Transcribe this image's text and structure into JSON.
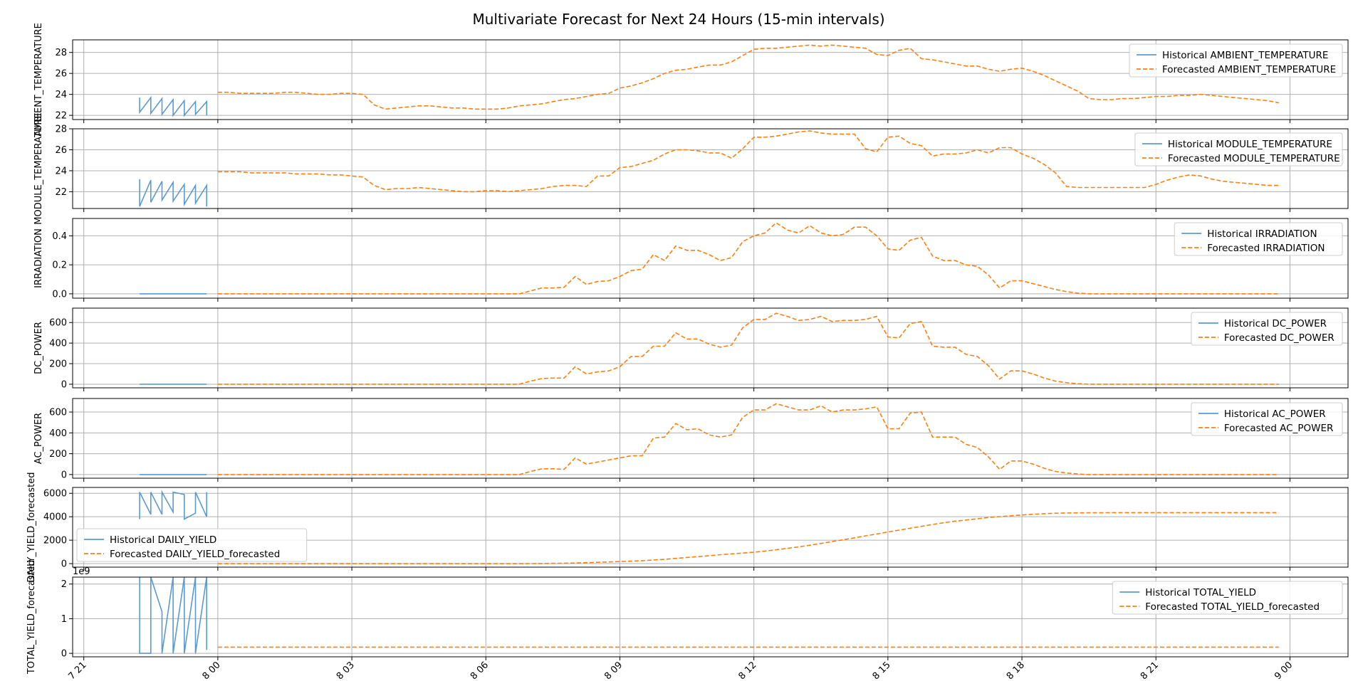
{
  "title": "Multivariate Forecast for Next 24 Hours (15-min intervals)",
  "colors": {
    "historical": "#5b9bcf",
    "forecast": "#ff7f0e",
    "grid": "#b0b0b0"
  },
  "x_ticks": [
    {
      "h": 21,
      "label": "7 21"
    },
    {
      "h": 24,
      "label": "8 00"
    },
    {
      "h": 27,
      "label": "8 03"
    },
    {
      "h": 30,
      "label": "8 06"
    },
    {
      "h": 33,
      "label": "8 09"
    },
    {
      "h": 36,
      "label": "8 12"
    },
    {
      "h": 39,
      "label": "8 15"
    },
    {
      "h": 42,
      "label": "8 18"
    },
    {
      "h": 45,
      "label": "8 21"
    },
    {
      "h": 48,
      "label": "9 00"
    }
  ],
  "chart_data": [
    {
      "type": "line",
      "ylabel": "AMBIENT_TEMPERATURE",
      "ylim": [
        21.6,
        29.2
      ],
      "yticks": [
        22,
        24,
        26,
        28
      ],
      "legend": "top-right",
      "historical_name": "Historical AMBIENT_TEMPERATURE",
      "forecast_name": "Forecasted AMBIENT_TEMPERATURE",
      "hist_x": [
        22.25,
        22.25,
        22.5,
        22.5,
        22.75,
        22.75,
        23.0,
        23.0,
        23.25,
        23.25,
        23.5,
        23.5,
        23.75,
        23.75
      ],
      "hist_y": [
        23.7,
        22.3,
        23.7,
        22.2,
        23.6,
        22.1,
        23.5,
        22.0,
        23.4,
        22.0,
        23.3,
        22.1,
        23.3,
        22.0
      ],
      "fc_y": [
        24.2,
        24.2,
        24.1,
        24.1,
        24.1,
        24.1,
        24.2,
        24.2,
        24.1,
        24.0,
        24.0,
        24.1,
        24.1,
        24.0,
        23.0,
        22.6,
        22.7,
        22.8,
        22.9,
        22.9,
        22.8,
        22.7,
        22.7,
        22.6,
        22.6,
        22.6,
        22.7,
        22.9,
        23.0,
        23.1,
        23.3,
        23.5,
        23.6,
        23.8,
        24.0,
        24.1,
        24.6,
        24.8,
        25.1,
        25.5,
        26.0,
        26.3,
        26.4,
        26.6,
        26.8,
        26.8,
        27.1,
        27.7,
        28.3,
        28.4,
        28.4,
        28.5,
        28.6,
        28.7,
        28.6,
        28.7,
        28.6,
        28.5,
        28.4,
        27.8,
        27.7,
        28.2,
        28.4,
        27.4,
        27.3,
        27.1,
        26.9,
        26.7,
        26.7,
        26.4,
        26.2,
        26.4,
        26.5,
        26.2,
        25.8,
        25.3,
        24.8,
        24.3,
        23.6,
        23.5,
        23.5,
        23.6,
        23.6,
        23.7,
        23.8,
        23.8,
        23.9,
        23.9,
        24.0,
        23.9,
        23.8,
        23.7,
        23.6,
        23.5,
        23.4,
        23.2
      ]
    },
    {
      "type": "line",
      "ylabel": "MODULE_TEMPERATURE",
      "ylim": [
        20.4,
        28.0
      ],
      "yticks": [
        22,
        24,
        26,
        28
      ],
      "legend": "top-right",
      "historical_name": "Historical MODULE_TEMPERATURE",
      "forecast_name": "Forecasted MODULE_TEMPERATURE",
      "hist_x": [
        22.25,
        22.25,
        22.5,
        22.5,
        22.75,
        22.75,
        23.0,
        23.0,
        23.25,
        23.25,
        23.5,
        23.5,
        23.75,
        23.75
      ],
      "hist_y": [
        23.2,
        20.6,
        23.1,
        21.0,
        23.0,
        21.2,
        22.9,
        21.1,
        22.7,
        20.8,
        22.6,
        20.9,
        22.6,
        20.6
      ],
      "fc_y": [
        23.9,
        23.9,
        23.9,
        23.8,
        23.8,
        23.8,
        23.8,
        23.7,
        23.7,
        23.7,
        23.6,
        23.6,
        23.5,
        23.4,
        22.6,
        22.2,
        22.3,
        22.3,
        22.4,
        22.3,
        22.2,
        22.1,
        22.0,
        22.0,
        22.1,
        22.1,
        22.0,
        22.1,
        22.2,
        22.3,
        22.5,
        22.6,
        22.6,
        22.5,
        23.5,
        23.5,
        24.3,
        24.4,
        24.7,
        25.0,
        25.6,
        26.0,
        26.0,
        25.9,
        25.7,
        25.7,
        25.2,
        26.1,
        27.2,
        27.2,
        27.3,
        27.5,
        27.7,
        27.8,
        27.6,
        27.5,
        27.5,
        27.5,
        26.1,
        25.8,
        27.2,
        27.3,
        26.6,
        26.4,
        25.4,
        25.6,
        25.6,
        25.7,
        26.0,
        25.7,
        26.2,
        26.2,
        25.6,
        25.2,
        24.6,
        23.8,
        22.5,
        22.4,
        22.4,
        22.4,
        22.4,
        22.4,
        22.4,
        22.4,
        22.7,
        23.1,
        23.4,
        23.6,
        23.5,
        23.2,
        23.0,
        22.9,
        22.8,
        22.7,
        22.6,
        22.6
      ]
    },
    {
      "type": "line",
      "ylabel": "IRRADIATION",
      "ylim": [
        -0.03,
        0.52
      ],
      "yticks": [
        0.0,
        0.2,
        0.4
      ],
      "legend": "top-right",
      "historical_name": "Historical IRRADIATION",
      "forecast_name": "Forecasted IRRADIATION",
      "hist_x": [
        22.25,
        23.75
      ],
      "hist_y": [
        0.0,
        0.0
      ],
      "fc_y": [
        0,
        0,
        0,
        0,
        0,
        0,
        0,
        0,
        0,
        0,
        0,
        0,
        0,
        0,
        0,
        0,
        0,
        0,
        0,
        0,
        0,
        0,
        0,
        0,
        0,
        0,
        0,
        0,
        0.02,
        0.04,
        0.04,
        0.045,
        0.12,
        0.065,
        0.085,
        0.09,
        0.12,
        0.16,
        0.17,
        0.27,
        0.23,
        0.33,
        0.3,
        0.3,
        0.27,
        0.23,
        0.25,
        0.36,
        0.4,
        0.42,
        0.49,
        0.44,
        0.42,
        0.47,
        0.42,
        0.4,
        0.41,
        0.46,
        0.46,
        0.4,
        0.31,
        0.3,
        0.37,
        0.39,
        0.26,
        0.23,
        0.23,
        0.2,
        0.19,
        0.13,
        0.04,
        0.09,
        0.09,
        0.07,
        0.05,
        0.03,
        0.015,
        0.005,
        0,
        0,
        0,
        0,
        0,
        0,
        0,
        0,
        0,
        0,
        0,
        0,
        0,
        0,
        0,
        0,
        0,
        0
      ]
    },
    {
      "type": "line",
      "ylabel": "DC_POWER",
      "ylim": [
        -35,
        740
      ],
      "yticks": [
        0,
        200,
        400,
        600
      ],
      "legend": "top-right",
      "historical_name": "Historical DC_POWER",
      "forecast_name": "Forecasted DC_POWER",
      "hist_x": [
        22.25,
        23.75
      ],
      "hist_y": [
        0,
        0
      ],
      "fc_y": [
        0,
        0,
        0,
        0,
        0,
        0,
        0,
        0,
        0,
        0,
        0,
        0,
        0,
        0,
        0,
        0,
        0,
        0,
        0,
        0,
        0,
        0,
        0,
        0,
        0,
        0,
        0,
        0,
        30,
        55,
        60,
        60,
        170,
        100,
        120,
        130,
        170,
        270,
        270,
        370,
        370,
        500,
        440,
        440,
        390,
        360,
        380,
        550,
        630,
        630,
        690,
        660,
        620,
        630,
        660,
        610,
        620,
        620,
        630,
        660,
        460,
        450,
        590,
        610,
        370,
        360,
        360,
        290,
        270,
        180,
        50,
        130,
        130,
        100,
        60,
        30,
        15,
        5,
        0,
        0,
        0,
        0,
        0,
        0,
        0,
        0,
        0,
        0,
        0,
        0,
        0,
        0,
        0,
        0,
        0,
        0
      ]
    },
    {
      "type": "line",
      "ylabel": "AC_POWER",
      "ylim": [
        -35,
        730
      ],
      "yticks": [
        0,
        200,
        400,
        600
      ],
      "legend": "top-right",
      "historical_name": "Historical AC_POWER",
      "forecast_name": "Forecasted AC_POWER",
      "hist_x": [
        22.25,
        23.75
      ],
      "hist_y": [
        0,
        0
      ],
      "fc_y": [
        0,
        0,
        0,
        0,
        0,
        0,
        0,
        0,
        0,
        0,
        0,
        0,
        0,
        0,
        0,
        0,
        0,
        0,
        0,
        0,
        0,
        0,
        0,
        0,
        0,
        0,
        0,
        0,
        30,
        55,
        55,
        50,
        160,
        100,
        120,
        140,
        160,
        180,
        180,
        350,
        360,
        490,
        430,
        440,
        380,
        360,
        380,
        550,
        620,
        620,
        680,
        650,
        620,
        620,
        660,
        600,
        620,
        620,
        630,
        650,
        440,
        440,
        590,
        600,
        360,
        360,
        360,
        290,
        260,
        170,
        50,
        130,
        130,
        100,
        60,
        30,
        15,
        5,
        0,
        0,
        0,
        0,
        0,
        0,
        0,
        0,
        0,
        0,
        0,
        0,
        0,
        0,
        0,
        0,
        0,
        0
      ]
    },
    {
      "type": "line",
      "ylabel": "DAILY_YIELD_forecasted",
      "ylim": [
        -300,
        6500
      ],
      "yticks": [
        0,
        2000,
        4000,
        6000
      ],
      "legend": "center-left",
      "historical_name": "Historical DAILY_YIELD",
      "forecast_name": "Forecasted DAILY_YIELD_forecasted",
      "hist_x": [
        22.25,
        22.25,
        22.5,
        22.5,
        22.75,
        22.75,
        23.0,
        23.0,
        23.25,
        23.25,
        23.5,
        23.5,
        23.75,
        23.75
      ],
      "hist_y": [
        3800,
        6100,
        4200,
        6100,
        4200,
        6100,
        4400,
        6100,
        5900,
        3800,
        4300,
        6100,
        4000,
        6100
      ],
      "fc_y": [
        0,
        0,
        0,
        0,
        0,
        0,
        0,
        0,
        0,
        0,
        0,
        0,
        0,
        0,
        0,
        0,
        0,
        0,
        0,
        0,
        0,
        0,
        0,
        0,
        0,
        0,
        0,
        0,
        5,
        12,
        20,
        35,
        60,
        85,
        115,
        145,
        175,
        210,
        255,
        310,
        370,
        445,
        525,
        600,
        680,
        760,
        830,
        900,
        975,
        1070,
        1180,
        1300,
        1430,
        1570,
        1720,
        1880,
        2040,
        2200,
        2370,
        2530,
        2700,
        2860,
        3020,
        3180,
        3340,
        3490,
        3620,
        3720,
        3830,
        3930,
        4010,
        4080,
        4150,
        4210,
        4260,
        4300,
        4320,
        4330,
        4340,
        4340,
        4350,
        4350,
        4350,
        4350,
        4350,
        4350,
        4350,
        4350,
        4350,
        4350,
        4350,
        4350,
        4350,
        4350,
        4350,
        4350
      ]
    },
    {
      "type": "line",
      "ylabel": "TOTAL_YIELD_forecasted",
      "offset_label": "1e9",
      "ylim": [
        -0.1,
        2.2
      ],
      "yticks": [
        0,
        1,
        2
      ],
      "legend": "top-right",
      "historical_name": "Historical TOTAL_YIELD",
      "forecast_name": "Forecasted TOTAL_YIELD_forecasted",
      "hist_x": [
        22.25,
        22.25,
        22.5,
        22.5,
        22.75,
        22.75,
        23.0,
        23.0,
        23.25,
        23.25,
        23.5,
        23.5,
        23.75,
        23.75
      ],
      "hist_y": [
        2.2,
        0.0,
        0.0,
        2.2,
        1.2,
        0.0,
        2.2,
        0.0,
        2.2,
        0.0,
        2.2,
        0.0,
        2.2,
        0.1
      ],
      "fc_y": [
        0.18,
        0.18,
        0.18,
        0.18,
        0.18,
        0.18,
        0.18,
        0.18,
        0.18,
        0.18,
        0.18,
        0.18,
        0.18,
        0.18,
        0.18,
        0.18,
        0.18,
        0.18,
        0.18,
        0.18,
        0.18,
        0.18,
        0.18,
        0.18,
        0.18,
        0.18,
        0.18,
        0.18,
        0.18,
        0.18,
        0.18,
        0.18,
        0.18,
        0.18,
        0.18,
        0.18,
        0.18,
        0.18,
        0.18,
        0.18,
        0.18,
        0.18,
        0.18,
        0.18,
        0.18,
        0.18,
        0.18,
        0.18,
        0.18,
        0.18,
        0.18,
        0.18,
        0.18,
        0.18,
        0.18,
        0.18,
        0.18,
        0.18,
        0.18,
        0.18,
        0.18,
        0.18,
        0.18,
        0.18,
        0.18,
        0.18,
        0.18,
        0.18,
        0.18,
        0.18,
        0.18,
        0.18,
        0.18,
        0.18,
        0.18,
        0.18,
        0.18,
        0.18,
        0.18,
        0.18,
        0.18,
        0.18,
        0.18,
        0.18,
        0.18,
        0.18,
        0.18,
        0.18,
        0.18,
        0.18,
        0.18,
        0.18,
        0.18,
        0.18,
        0.18,
        0.18
      ]
    }
  ]
}
